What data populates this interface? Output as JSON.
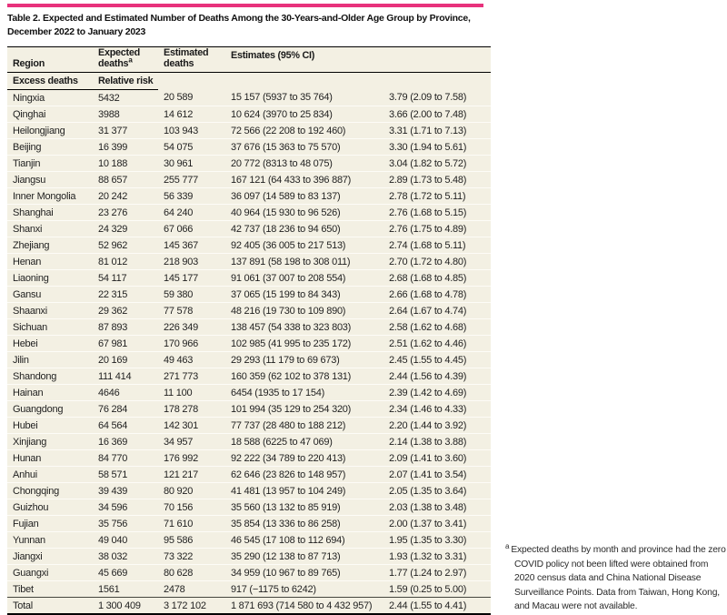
{
  "title_lines": [
    "Table 2. Expected and Estimated Number of Deaths Among the 30-Years-and-Older Age Group by Province,",
    "December 2022 to January 2023"
  ],
  "colors": {
    "accent_rule": "#e8327c",
    "table_bg": "#f3f0e3"
  },
  "table": {
    "group_header": "Estimates (95% CI)",
    "columns": {
      "region": "Region",
      "expected": "Expected deaths",
      "expected_sup": "a",
      "estimated": "Estimated deaths",
      "excess": "Excess deaths",
      "relative_risk": "Relative risk"
    },
    "rows": [
      {
        "region": "Ningxia",
        "expected": "5432",
        "estimated": "20 589",
        "excess": "15 157 (5937 to 35 764)",
        "relative_risk": "3.79 (2.09 to 7.58)"
      },
      {
        "region": "Qinghai",
        "expected": "3988",
        "estimated": "14 612",
        "excess": "10 624 (3970 to 25 834)",
        "relative_risk": "3.66 (2.00 to 7.48)"
      },
      {
        "region": "Heilongjiang",
        "expected": "31 377",
        "estimated": "103 943",
        "excess": "72 566 (22 208 to 192 460)",
        "relative_risk": "3.31 (1.71 to 7.13)"
      },
      {
        "region": "Beijing",
        "expected": "16 399",
        "estimated": "54 075",
        "excess": "37 676 (15 363 to 75 570)",
        "relative_risk": "3.30 (1.94 to 5.61)"
      },
      {
        "region": "Tianjin",
        "expected": "10 188",
        "estimated": "30 961",
        "excess": "20 772 (8313 to 48 075)",
        "relative_risk": "3.04 (1.82 to 5.72)"
      },
      {
        "region": "Jiangsu",
        "expected": "88 657",
        "estimated": "255 777",
        "excess": "167 121 (64 433 to 396 887)",
        "relative_risk": "2.89 (1.73 to 5.48)"
      },
      {
        "region": "Inner Mongolia",
        "expected": "20 242",
        "estimated": "56 339",
        "excess": "36 097 (14 589 to 83 137)",
        "relative_risk": "2.78 (1.72 to 5.11)"
      },
      {
        "region": "Shanghai",
        "expected": "23 276",
        "estimated": "64 240",
        "excess": "40 964 (15 930 to 96 526)",
        "relative_risk": "2.76 (1.68 to 5.15)"
      },
      {
        "region": "Shanxi",
        "expected": "24 329",
        "estimated": "67 066",
        "excess": "42 737 (18 236 to 94 650)",
        "relative_risk": "2.76 (1.75 to 4.89)"
      },
      {
        "region": "Zhejiang",
        "expected": "52 962",
        "estimated": "145 367",
        "excess": "92 405 (36 005 to 217 513)",
        "relative_risk": "2.74 (1.68 to 5.11)"
      },
      {
        "region": "Henan",
        "expected": "81 012",
        "estimated": "218 903",
        "excess": "137 891 (58 198 to 308 011)",
        "relative_risk": "2.70 (1.72 to 4.80)"
      },
      {
        "region": "Liaoning",
        "expected": "54 117",
        "estimated": "145 177",
        "excess": "91 061 (37 007 to 208 554)",
        "relative_risk": "2.68 (1.68 to 4.85)"
      },
      {
        "region": "Gansu",
        "expected": "22 315",
        "estimated": "59 380",
        "excess": "37 065 (15 199 to 84 343)",
        "relative_risk": "2.66 (1.68 to 4.78)"
      },
      {
        "region": "Shaanxi",
        "expected": "29 362",
        "estimated": "77 578",
        "excess": "48 216 (19 730 to 109 890)",
        "relative_risk": "2.64 (1.67 to 4.74)"
      },
      {
        "region": "Sichuan",
        "expected": "87 893",
        "estimated": "226 349",
        "excess": "138 457 (54 338 to 323 803)",
        "relative_risk": "2.58 (1.62 to 4.68)"
      },
      {
        "region": "Hebei",
        "expected": "67 981",
        "estimated": "170 966",
        "excess": "102 985 (41 995 to 235 172)",
        "relative_risk": "2.51 (1.62 to 4.46)"
      },
      {
        "region": "Jilin",
        "expected": "20 169",
        "estimated": "49 463",
        "excess": "29 293 (11 179 to 69 673)",
        "relative_risk": "2.45 (1.55 to 4.45)"
      },
      {
        "region": "Shandong",
        "expected": "111 414",
        "estimated": "271 773",
        "excess": "160 359 (62 102 to 378 131)",
        "relative_risk": "2.44 (1.56 to 4.39)"
      },
      {
        "region": "Hainan",
        "expected": "4646",
        "estimated": "11 100",
        "excess": "6454 (1935 to 17 154)",
        "relative_risk": "2.39 (1.42 to 4.69)"
      },
      {
        "region": "Guangdong",
        "expected": "76 284",
        "estimated": "178 278",
        "excess": "101 994 (35 129 to 254 320)",
        "relative_risk": "2.34 (1.46 to 4.33)"
      },
      {
        "region": "Hubei",
        "expected": "64 564",
        "estimated": "142 301",
        "excess": "77 737 (28 480 to 188 212)",
        "relative_risk": "2.20 (1.44 to 3.92)"
      },
      {
        "region": "Xinjiang",
        "expected": "16 369",
        "estimated": "34 957",
        "excess": "18 588 (6225 to 47 069)",
        "relative_risk": "2.14 (1.38 to 3.88)"
      },
      {
        "region": "Hunan",
        "expected": "84 770",
        "estimated": "176 992",
        "excess": "92 222 (34 789 to 220 413)",
        "relative_risk": "2.09 (1.41 to 3.60)"
      },
      {
        "region": "Anhui",
        "expected": "58 571",
        "estimated": "121 217",
        "excess": "62 646 (23 826 to 148 957)",
        "relative_risk": "2.07 (1.41 to 3.54)"
      },
      {
        "region": "Chongqing",
        "expected": "39 439",
        "estimated": "80 920",
        "excess": "41 481 (13 957 to 104 249)",
        "relative_risk": "2.05 (1.35 to 3.64)"
      },
      {
        "region": "Guizhou",
        "expected": "34 596",
        "estimated": "70 156",
        "excess": "35 560 (13 132 to 85 919)",
        "relative_risk": "2.03 (1.38 to 3.48)"
      },
      {
        "region": "Fujian",
        "expected": "35 756",
        "estimated": "71 610",
        "excess": "35 854 (13 336 to 86 258)",
        "relative_risk": "2.00 (1.37 to 3.41)"
      },
      {
        "region": "Yunnan",
        "expected": "49 040",
        "estimated": "95 586",
        "excess": "46 545 (17 108 to 112 694)",
        "relative_risk": "1.95 (1.35 to 3.30)"
      },
      {
        "region": "Jiangxi",
        "expected": "38 032",
        "estimated": "73 322",
        "excess": "35 290 (12 138 to 87 713)",
        "relative_risk": "1.93 (1.32 to 3.31)"
      },
      {
        "region": "Guangxi",
        "expected": "45 669",
        "estimated": "80 628",
        "excess": "34 959 (10 967 to 89 765)",
        "relative_risk": "1.77 (1.24 to 2.97)"
      },
      {
        "region": "Tibet",
        "expected": "1561",
        "estimated": "2478",
        "excess": "917 (−1175 to 6242)",
        "relative_risk": "1.59 (0.25 to 5.00)"
      },
      {
        "region": "Total",
        "expected": "1 300 409",
        "estimated": "3 172 102",
        "excess": "1 871 693 (714 580 to 4 432 957)",
        "relative_risk": "2.44 (1.55 to 4.41)"
      }
    ]
  },
  "footnote": {
    "marker": "a",
    "text": "Expected deaths by month and province had the zero COVID policy not been lifted were obtained from 2020 census data and China National Disease Surveillance Points. Data from Taiwan, Hong Kong, and Macau were not available."
  }
}
